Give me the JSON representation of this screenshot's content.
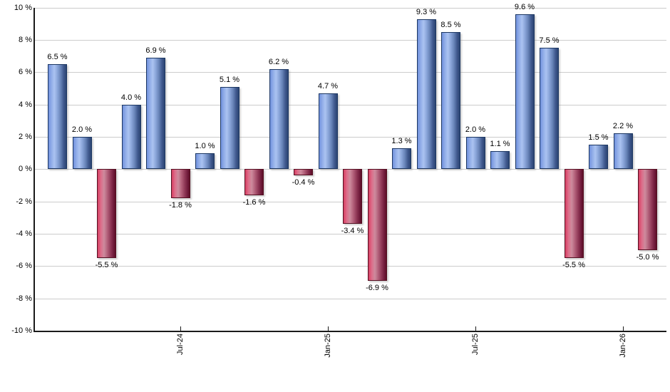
{
  "chart_data": {
    "type": "bar",
    "title": "",
    "description": "Monthly total returns bar chart; blue bars are positive months, red bars are negative months",
    "values": [
      6.5,
      2.0,
      -5.5,
      4.0,
      6.9,
      -1.8,
      1.0,
      5.1,
      -1.6,
      6.2,
      -0.4,
      4.7,
      -3.4,
      -6.9,
      1.3,
      9.3,
      8.5,
      2.0,
      1.1,
      9.6,
      7.5,
      -5.5,
      1.5,
      2.2,
      -5.0
    ],
    "bar_value_labels": [
      "6.5 %",
      "2.0 %",
      "-5.5 %",
      "4.0 %",
      "6.9 %",
      "-1.8 %",
      "1.0 %",
      "5.1 %",
      "-1.6 %",
      "6.2 %",
      "-0.4 %",
      "4.7 %",
      "-3.4 %",
      "-6.9 %",
      "1.3 %",
      "9.3 %",
      "8.5 %",
      "2.0 %",
      "1.1 %",
      "9.6 %",
      "7.5 %",
      "-5.5 %",
      "1.5 %",
      "2.2 %",
      "-5.0 %"
    ],
    "x_tick_labels": [
      "Jul-24",
      "Jan-25",
      "Jul-25",
      "Jan-26"
    ],
    "x_tick_bar_indices": [
      5,
      11,
      17,
      23
    ],
    "y_tick_labels": [
      "10 %",
      "8 %",
      "6 %",
      "4 %",
      "2 %",
      "0 %",
      "-2 %",
      "-4 %",
      "-6 %",
      "-8 %",
      "-10 %"
    ],
    "y_tick_values": [
      10,
      8,
      6,
      4,
      2,
      0,
      -2,
      -4,
      -6,
      -8,
      -10
    ],
    "ylim": [
      -10,
      10
    ],
    "grid": true,
    "legend_position": "none",
    "colors": {
      "positive_bar": "#7ca0e0",
      "positive_bar_highlight": "#abc3f1",
      "positive_bar_dark": "#2c4572",
      "positive_bar_border": "#1c3763",
      "negative_bar": "#c74b68",
      "negative_bar_highlight": "#cd8b9d",
      "negative_bar_dark": "#5e1028",
      "negative_bar_border": "#551022",
      "gridline": "#cccccc",
      "axis": "#1a1a1a",
      "label_text": "#000000",
      "background": "#ffffff"
    }
  }
}
